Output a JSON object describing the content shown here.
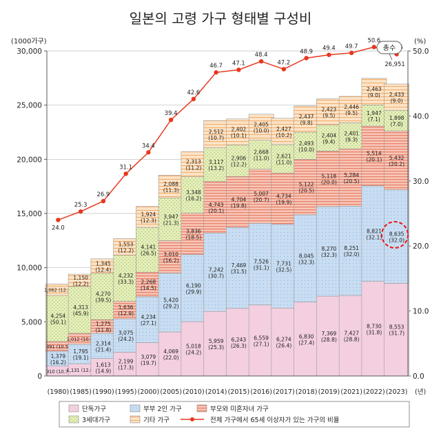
{
  "chart_data": {
    "type": "bar",
    "title": "일본의 고령 가구 형태별 구성비",
    "left_unit": "(1000가구)",
    "right_unit": "(%)",
    "x_unit": "(년)",
    "ylim": [
      0,
      30000
    ],
    "yticks": [
      "0",
      "5,000",
      "10,000",
      "15,000",
      "20,000",
      "25,000",
      "30,000"
    ],
    "ylim_right": [
      0,
      50
    ],
    "yticks_right": [
      "0.0",
      "10.0",
      "20.0",
      "30.0",
      "40.0",
      "50.0"
    ],
    "categories": [
      "(1980)",
      "(1985)",
      "(1990)",
      "(1995)",
      "(2000)",
      "(2005)",
      "(2010)",
      "(2014)",
      "(2015)",
      "(2016)",
      "(2017)",
      "(2018)",
      "(2019)",
      "(2021)",
      "(2022)",
      "(2023)"
    ],
    "series": [
      {
        "name": "단독가구",
        "color": "#f3cfe0",
        "values": [
          910,
          1131,
          1613,
          2199,
          3079,
          4069,
          5018,
          5959,
          6243,
          6559,
          6274,
          6830,
          7369,
          7427,
          8730,
          8553
        ],
        "labels": [
          "910",
          "1,131",
          "1,613",
          "2,199",
          "3,079",
          "4,069",
          "5,018",
          "5,959",
          "6,243",
          "6,559",
          "6,274",
          "6,830",
          "7,369",
          "7,427",
          "8,730",
          "8,553"
        ],
        "shares": [
          "(10.7)",
          "(12.0)",
          "(14.9)",
          "(17.3)",
          "(19.7)",
          "(22.0)",
          "(24.2)",
          "(25.3)",
          "(26.3)",
          "(27.1)",
          "(26.4)",
          "(27.4)",
          "(28.8)",
          "(28.8)",
          "(31.8)",
          "(31.7)"
        ]
      },
      {
        "name": "부부 2인 가구",
        "color": "#c8ddf2",
        "values": [
          1379,
          1795,
          2314,
          3075,
          4234,
          5420,
          6190,
          7242,
          7469,
          7526,
          7731,
          8045,
          8270,
          8251,
          8821,
          8635
        ],
        "labels": [
          "1,379",
          "1,795",
          "2,314",
          "3,075",
          "4,234",
          "5,420",
          "6,190",
          "7,242",
          "7,469",
          "7,526",
          "7,731",
          "8,045",
          "8,270",
          "8,251",
          "8,821",
          "8,635"
        ],
        "shares": [
          "(16.2)",
          "(19.1)",
          "(21.4)",
          "(24.2)",
          "(27.1)",
          "(29.2)",
          "(29.9)",
          "(30.7)",
          "(31.5)",
          "(31.1)",
          "(32.5)",
          "(32.3)",
          "(32.3)",
          "(32.0)",
          "(32.1)",
          "(32.0)"
        ]
      },
      {
        "name": "부모와 미혼자녀 가구",
        "color": "#f5b8a8",
        "values": [
          891,
          1012,
          1275,
          1636,
          2268,
          3010,
          3836,
          4743,
          4704,
          5007,
          4734,
          5122,
          5118,
          5284,
          5514,
          5432
        ],
        "labels": [
          "891",
          "1,012",
          "1,275",
          "1,636",
          "2,268",
          "3,010",
          "3,836",
          "4,743",
          "4,704",
          "5,007",
          "4,734",
          "5,122",
          "5,118",
          "5,284",
          "5,514",
          "5,432"
        ],
        "shares": [
          "(10.5)",
          "(10.8)",
          "(11.8)",
          "(12.9)",
          "(14.5)",
          "(16.2)",
          "(18.5)",
          "(20.1)",
          "(19.8)",
          "(20.7)",
          "(19.9)",
          "(20.5)",
          "(20.0)",
          "(20.5)",
          "(20.1)",
          "(20.2)"
        ]
      },
      {
        "name": "3세대가구",
        "color": "#e2ecb5",
        "values": [
          4254,
          4313,
          4270,
          4232,
          4141,
          3947,
          3348,
          3117,
          2906,
          2668,
          2621,
          2493,
          2404,
          2401,
          1947,
          1898
        ],
        "labels": [
          "4,254",
          "4,313",
          "4,270",
          "4,232",
          "4,141",
          "3,947",
          "3,348",
          "3,117",
          "2,906",
          "2,668",
          "2,621",
          "2,493",
          "2,404",
          "2,401",
          "1,947",
          "1,898"
        ],
        "shares": [
          "(50.1)",
          "(45.9)",
          "(39.5)",
          "(33.3)",
          "(26.5)",
          "(21.3)",
          "(16.2)",
          "(13.2)",
          "(12.2)",
          "(11.0)",
          "(11.0)",
          "(10.0)",
          "(9.4)",
          "(9.3)",
          "(7.1)",
          "(7.0)"
        ]
      },
      {
        "name": "기타 가구",
        "color": "#fbe0c0",
        "values": [
          1062,
          1150,
          1345,
          1553,
          1924,
          2088,
          2313,
          2512,
          2402,
          2405,
          2427,
          2437,
          2423,
          2446,
          2463,
          2433
        ],
        "labels": [
          "1,062",
          "1,150",
          "1,345",
          "1,553",
          "1,924",
          "2,088",
          "2,313",
          "2,512",
          "2,402",
          "2,405",
          "2,427",
          "2,437",
          "2,423",
          "2,446",
          "2,463",
          "2,433"
        ],
        "shares": [
          "(12.5)",
          "(12.2)",
          "(12.4)",
          "(12.2)",
          "(12.3)",
          "(11.3)",
          "(11.2)",
          "(10.7)",
          "(10.1)",
          "(10.0)",
          "(10.2)",
          "(9.8)",
          "(9.5)",
          "(9.5)",
          "(9.0)",
          "(9.0)"
        ]
      }
    ],
    "line": {
      "name": "전체 가구에서 65세 이상자가 있는 가구의 비율",
      "color": "#e8371e",
      "values": [
        24.0,
        25.3,
        26.9,
        31.1,
        34.4,
        39.4,
        42.6,
        46.7,
        47.1,
        48.4,
        47.2,
        48.9,
        49.4,
        49.7,
        50.6,
        49.5
      ],
      "labels": [
        "24.0",
        "25.3",
        "26.9",
        "31.1",
        "34.4",
        "39.4",
        "42.6",
        "46.7",
        "47.1",
        "48.4",
        "47.2",
        "48.9",
        "49.4",
        "49.7",
        "50.6",
        "49.5"
      ]
    },
    "callout": {
      "label": "총수",
      "total": "26,951"
    },
    "highlight": {
      "category": "(2023)",
      "series": "부부 2인 가구"
    },
    "legend_placement": "bottom"
  }
}
